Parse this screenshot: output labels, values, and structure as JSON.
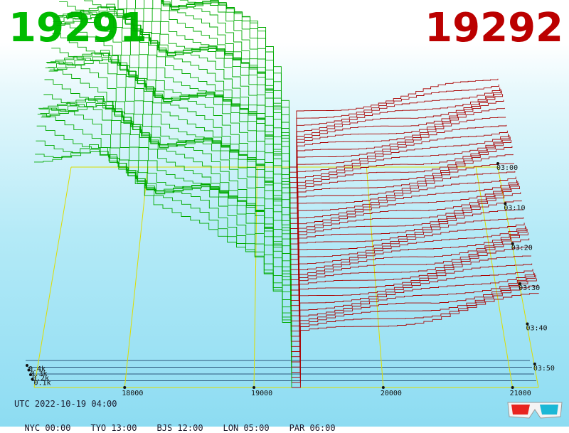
{
  "header": {
    "bid_price": "19291",
    "ask_price": "19292",
    "bid_color": "#00bb00",
    "ask_color": "#bb0000"
  },
  "footer": {
    "utc": "UTC 2022-10-19 04:00",
    "zones": [
      {
        "label": "NYC 00:00"
      },
      {
        "label": "TYO 13:00"
      },
      {
        "label": "BJS 12:00"
      },
      {
        "label": "LON 05:00"
      },
      {
        "label": "PAR 06:00"
      }
    ]
  },
  "glasses_icon": "3d-glasses-icon",
  "chart_data": {
    "type": "area",
    "x_ticks": [
      "18000",
      "19000",
      "20000",
      "21000"
    ],
    "x_tick_values": [
      18000,
      19000,
      20000,
      21000
    ],
    "xlim": [
      17300,
      21200
    ],
    "mid_price": 19291.5,
    "z_ticks": [
      "0.1k",
      "0.2k",
      "0.3k",
      "0.4k"
    ],
    "z_tick_values": [
      100,
      200,
      300,
      400
    ],
    "time_ticks": [
      "03:00",
      "03:10",
      "03:20",
      "03:30",
      "03:40",
      "03:50"
    ],
    "time_tick_values": [
      0,
      10,
      20,
      30,
      40,
      50
    ],
    "time_range": [
      0,
      55
    ],
    "series": [
      {
        "side": "bid",
        "color": "#00aa00"
      },
      {
        "side": "ask",
        "color": "#aa0000"
      }
    ],
    "bid_depth_profile": [
      {
        "price": 17300,
        "volume": 355
      },
      {
        "price": 17750,
        "volume": 352
      },
      {
        "price": 18200,
        "volume": 262
      },
      {
        "price": 18600,
        "volume": 255
      },
      {
        "price": 19000,
        "volume": 200
      },
      {
        "price": 19200,
        "volume": 120
      },
      {
        "price": 19291.5,
        "volume": 0
      }
    ],
    "ask_depth_profile": [
      {
        "price": 19291.5,
        "volume": 0
      },
      {
        "price": 19350,
        "volume": 80
      },
      {
        "price": 19800,
        "volume": 90
      },
      {
        "price": 20400,
        "volume": 105
      },
      {
        "price": 20900,
        "volume": 125
      },
      {
        "price": 21200,
        "volume": 138
      }
    ],
    "grid": true
  }
}
